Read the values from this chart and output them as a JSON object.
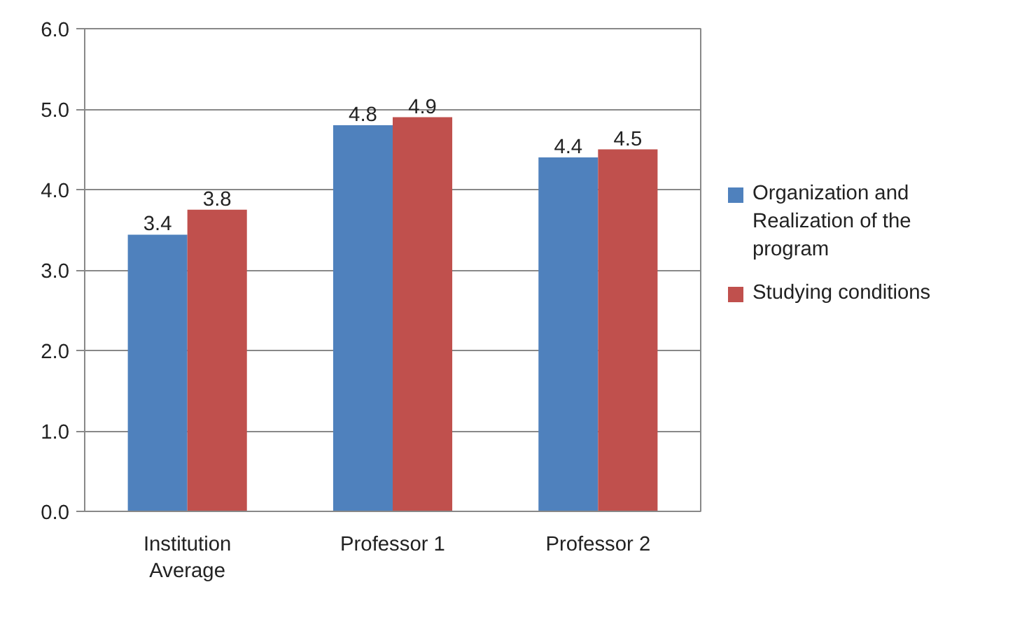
{
  "chart_data": {
    "type": "bar",
    "categories": [
      "Institution Average",
      "Professor 1",
      "Professor 2"
    ],
    "series": [
      {
        "name": "Organization and Realization of the program",
        "color": "#4f81bd",
        "values": [
          3.44,
          4.8,
          4.4
        ],
        "value_labels": [
          "3.4",
          "4.8",
          "4.4"
        ]
      },
      {
        "name": "Studying conditions",
        "color": "#c0504d",
        "values": [
          3.75,
          4.9,
          4.5
        ],
        "value_labels": [
          "3.8",
          "4.9",
          "4.5"
        ]
      }
    ],
    "ylim": [
      0,
      6
    ],
    "yticks": [
      {
        "value": 0,
        "label": "0.0"
      },
      {
        "value": 1,
        "label": "1.0"
      },
      {
        "value": 2,
        "label": "2.0"
      },
      {
        "value": 3,
        "label": "3.0"
      },
      {
        "value": 4,
        "label": "4.0"
      },
      {
        "value": 5,
        "label": "5.0"
      },
      {
        "value": 6,
        "label": "6.0"
      }
    ],
    "grid": "y",
    "legend": "right"
  }
}
